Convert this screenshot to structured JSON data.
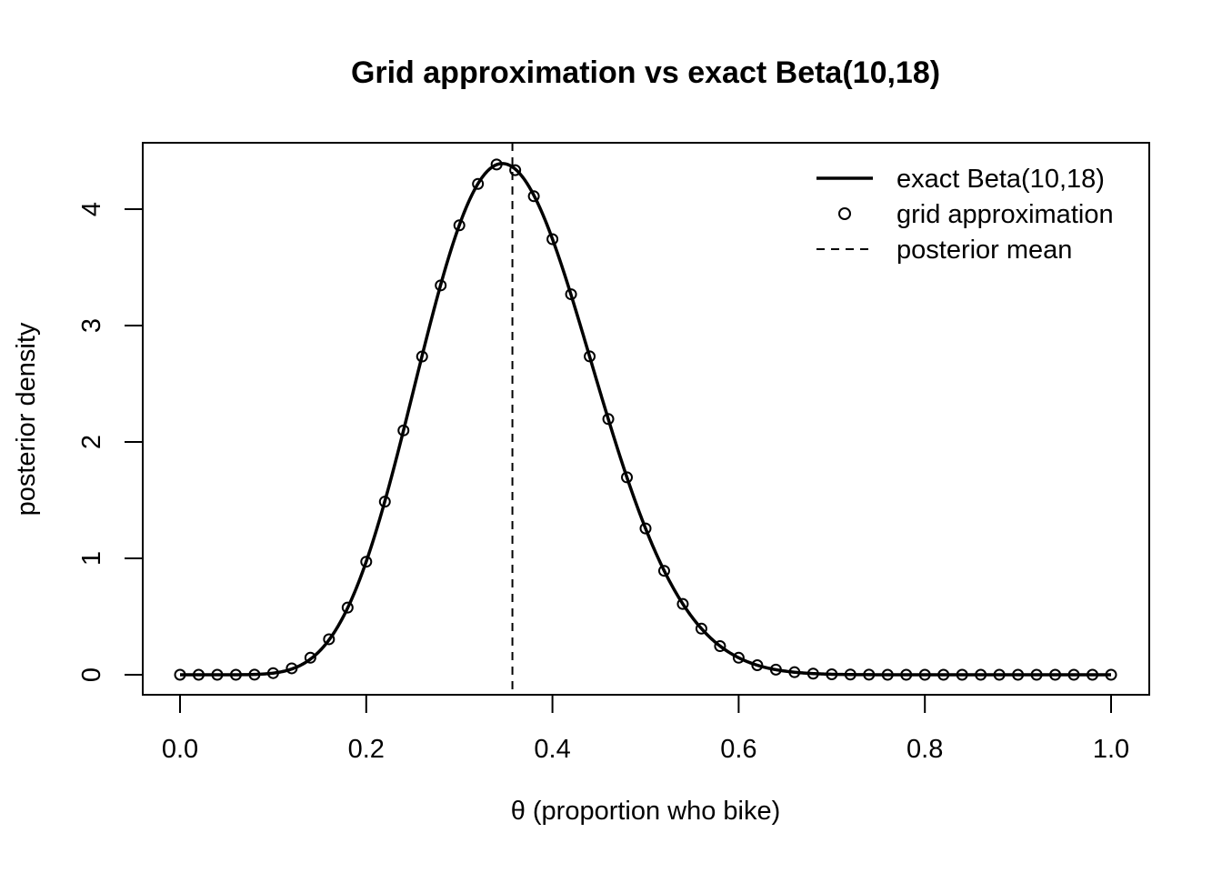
{
  "chart_data": {
    "type": "line",
    "title": "Grid approximation vs exact Beta(10,18)",
    "xlabel": "θ (proportion who bike)",
    "ylabel": "posterior density",
    "xlim": [
      0,
      1
    ],
    "ylim": [
      0,
      4.4
    ],
    "x_ticks": [
      "0.0",
      "0.2",
      "0.4",
      "0.6",
      "0.8",
      "1.0"
    ],
    "y_ticks": [
      "0",
      "1",
      "2",
      "3",
      "4"
    ],
    "grid": false,
    "legend_position": "top-right",
    "legend": [
      {
        "label": "exact Beta(10,18)",
        "style": "solid-line"
      },
      {
        "label": "grid approximation",
        "style": "open-circle"
      },
      {
        "label": "posterior mean",
        "style": "dashed-line"
      }
    ],
    "series": [
      {
        "name": "exact Beta(10,18)",
        "kind": "curve",
        "distribution": {
          "family": "beta",
          "alpha": 10,
          "beta": 18
        },
        "color": "#000000"
      },
      {
        "name": "grid approximation",
        "kind": "points",
        "x": [
          0.0,
          0.02,
          0.04,
          0.06,
          0.08,
          0.1,
          0.12,
          0.14,
          0.16,
          0.18,
          0.2,
          0.22,
          0.24,
          0.26,
          0.28,
          0.3,
          0.32,
          0.34,
          0.36,
          0.38,
          0.4,
          0.42,
          0.44,
          0.46,
          0.48,
          0.5,
          0.52,
          0.54,
          0.56,
          0.58,
          0.6,
          0.62,
          0.64,
          0.66,
          0.68,
          0.7,
          0.72,
          0.74,
          0.76,
          0.78,
          0.8,
          0.82,
          0.84,
          0.86,
          0.88,
          0.9,
          0.92,
          0.94,
          0.96,
          0.98,
          1.0
        ],
        "y": [
          0.0,
          0.0,
          0.0,
          0.0,
          0.001,
          0.014,
          0.055,
          0.146,
          0.305,
          0.577,
          0.971,
          1.487,
          2.099,
          2.734,
          3.345,
          3.861,
          4.217,
          4.384,
          4.335,
          4.111,
          3.742,
          3.269,
          2.735,
          2.197,
          1.696,
          1.257,
          0.893,
          0.608,
          0.396,
          0.246,
          0.146,
          0.082,
          0.044,
          0.022,
          0.01,
          0.004,
          0.002,
          0.001,
          0.0,
          0.0,
          0.0,
          0.0,
          0.0,
          0.0,
          0.0,
          0.0,
          0.0,
          0.0,
          0.0,
          0.0,
          0.0
        ],
        "color": "#000000"
      },
      {
        "name": "posterior mean",
        "kind": "vline",
        "x": 0.357,
        "color": "#000000"
      }
    ]
  }
}
